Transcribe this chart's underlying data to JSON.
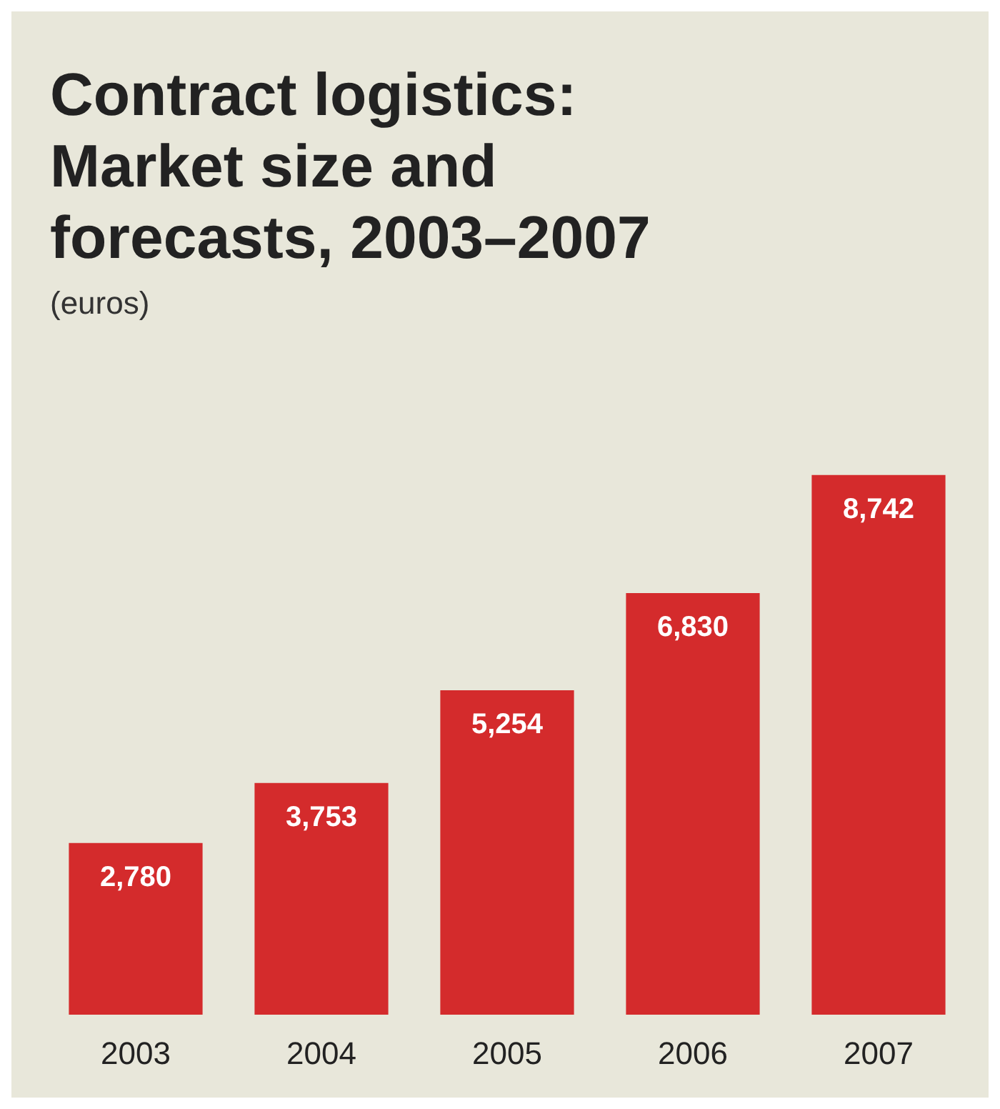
{
  "chart_data": {
    "type": "bar",
    "title": "Contract logistics:\nMarket size and\nforecasts, 2003–2007",
    "subtitle": "(euros)",
    "categories": [
      "2003",
      "2004",
      "2005",
      "2006",
      "2007"
    ],
    "values": [
      2780,
      3753,
      5254,
      6830,
      8742
    ],
    "value_labels": [
      "2,780",
      "3,753",
      "5,254",
      "6,830",
      "8,742"
    ],
    "color": "#d42b2c"
  }
}
